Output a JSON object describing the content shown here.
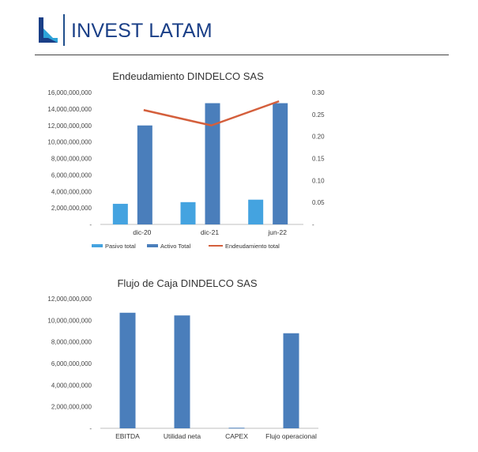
{
  "header": {
    "brand": "INVEST LATAM",
    "logo_icon": "invest-latam-logo-icon",
    "colors": {
      "brand": "#1a3f87",
      "accent": "#2ea3d8"
    }
  },
  "chart_data": [
    {
      "type": "bar",
      "title": "Endeudamiento DINDELCO SAS",
      "categories": [
        "dic-20",
        "dic-21",
        "jun-22"
      ],
      "series": [
        {
          "name": "Pasivo total",
          "kind": "bar",
          "axis": "left",
          "color": "#44a3e0",
          "values": [
            2500000000,
            2700000000,
            3000000000
          ]
        },
        {
          "name": "Activo Total",
          "kind": "bar",
          "axis": "left",
          "color": "#4a7ebb",
          "values": [
            12000000000,
            14700000000,
            14700000000
          ]
        },
        {
          "name": "Endeudamiento total",
          "kind": "line",
          "axis": "right",
          "color": "#d45f3c",
          "values": [
            0.26,
            0.225,
            0.28
          ]
        }
      ],
      "y_ticks": [
        "16,000,000,000",
        "14,000,000,000",
        "12,000,000,000",
        "10,000,000,000",
        "8,000,000,000",
        "6,000,000,000",
        "4,000,000,000",
        "2,000,000,000",
        "-"
      ],
      "y2_ticks": [
        "0.30",
        "0.25",
        "0.20",
        "0.15",
        "0.10",
        "0.05",
        "-"
      ],
      "ylim": [
        0,
        16000000000
      ],
      "y2lim": [
        0,
        0.3
      ],
      "legend": "bottom",
      "grid": false
    },
    {
      "type": "bar",
      "title": "Flujo de Caja DINDELCO SAS",
      "categories": [
        "EBITDA",
        "Utilidad neta",
        "CAPEX",
        "Flujo operacional"
      ],
      "series": [
        {
          "kind": "bar",
          "color": "#4a7ebb",
          "values": [
            10700000000,
            10450000000,
            50000000,
            8800000000
          ]
        }
      ],
      "y_ticks": [
        "12,000,000,000",
        "10,000,000,000",
        "8,000,000,000",
        "6,000,000,000",
        "4,000,000,000",
        "2,000,000,000",
        "-"
      ],
      "ylim": [
        0,
        12000000000
      ],
      "legend": "none",
      "grid": false
    }
  ]
}
